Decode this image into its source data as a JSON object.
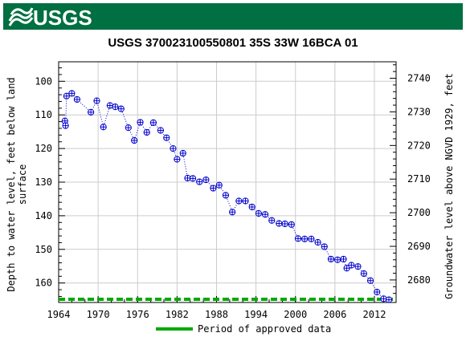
{
  "logo": {
    "text": "USGS"
  },
  "colors": {
    "header_bg": "#006f41",
    "marker": "#0000cc",
    "approved": "#00aa00"
  },
  "chart_data": {
    "type": "scatter",
    "title": "USGS 370023100550801 35S 33W 16BCA 01",
    "ylabel_left": [
      "Depth to water level, feet below land",
      "surface"
    ],
    "ylabel_right": "Groundwater level above NGVD 1929, feet",
    "x_ticks": [
      "1964",
      "1970",
      "1976",
      "1982",
      "1988",
      "1994",
      "2000",
      "2006",
      "2012"
    ],
    "y_left_ticks": [
      "100",
      "110",
      "120",
      "130",
      "140",
      "150",
      "160"
    ],
    "y_right_ticks": [
      "2740",
      "2730",
      "2720",
      "2710",
      "2700",
      "2690",
      "2680"
    ],
    "xlim": [
      1964,
      2015.3
    ],
    "ylim_left": [
      94.2,
      165.8
    ],
    "ylim_right": [
      2744.9,
      2673.3
    ],
    "grid": true,
    "marker": "circle with cross, dotted connecting line",
    "series": [
      {
        "x": [
          1964.95,
          1965.05,
          1965.2,
          1966.0,
          1966.8,
          1968.9,
          1969.8,
          1970.8,
          1971.8,
          1972.6,
          1973.5,
          1974.6,
          1975.5,
          1976.4,
          1977.4,
          1978.4,
          1979.5,
          1980.4,
          1981.4,
          1982.0,
          1982.9,
          1983.6,
          1984.4,
          1985.4,
          1986.4,
          1987.5,
          1988.4,
          1989.4,
          1990.4,
          1991.4,
          1992.4,
          1993.4,
          1994.4,
          1995.4,
          1996.4,
          1997.5,
          1998.4,
          1999.4,
          2000.4,
          2001.4,
          2002.4,
          2003.4,
          2004.4,
          2005.4,
          2006.4,
          2007.3,
          2007.8,
          2008.5,
          2009.5,
          2010.4,
          2011.4,
          2012.4,
          2013.4,
          2014.2
        ],
        "y": [
          111.8,
          113.2,
          104.4,
          103.6,
          105.4,
          109.2,
          105.8,
          113.6,
          107.2,
          107.6,
          108.2,
          113.8,
          117.6,
          112.2,
          115.2,
          112.3,
          114.6,
          116.8,
          120.0,
          123.2,
          121.4,
          128.8,
          128.9,
          129.9,
          129.3,
          131.8,
          130.9,
          133.9,
          138.9,
          135.6,
          135.6,
          137.4,
          139.3,
          139.6,
          141.4,
          142.3,
          142.4,
          142.6,
          146.8,
          146.9,
          146.9,
          147.9,
          149.2,
          152.9,
          153.1,
          152.9,
          155.6,
          154.7,
          155.1,
          157.2,
          159.3,
          162.7,
          164.7,
          165.0
        ]
      }
    ],
    "approved_period": [
      1964,
      2015.2
    ],
    "legend": "Period of approved data",
    "legend_position": "bottom"
  }
}
